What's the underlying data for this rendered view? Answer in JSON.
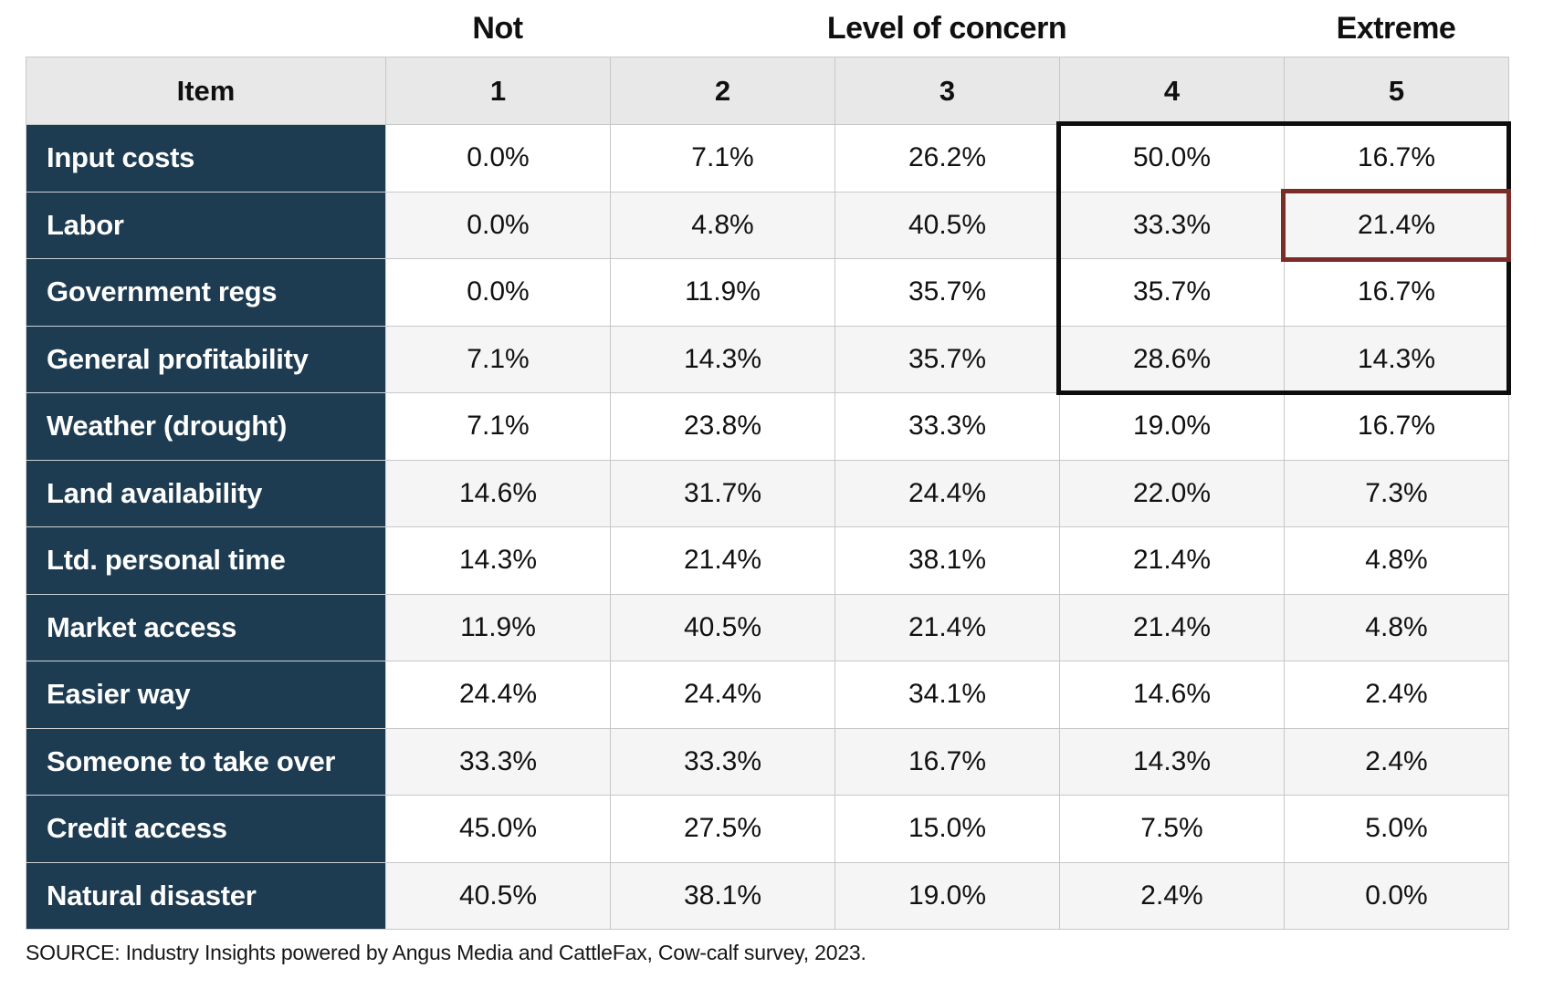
{
  "title_row": {
    "left": "Not",
    "center": "Level of concern",
    "right": "Extreme"
  },
  "table": {
    "columns": [
      "Item",
      "1",
      "2",
      "3",
      "4",
      "5"
    ],
    "rows": [
      {
        "item": "Input costs",
        "values": [
          "0.0%",
          "7.1%",
          "26.2%",
          "50.0%",
          "16.7%"
        ]
      },
      {
        "item": "Labor",
        "values": [
          "0.0%",
          "4.8%",
          "40.5%",
          "33.3%",
          "21.4%"
        ]
      },
      {
        "item": "Government regs",
        "values": [
          "0.0%",
          "11.9%",
          "35.7%",
          "35.7%",
          "16.7%"
        ]
      },
      {
        "item": "General profitability",
        "values": [
          "7.1%",
          "14.3%",
          "35.7%",
          "28.6%",
          "14.3%"
        ]
      },
      {
        "item": "Weather (drought)",
        "values": [
          "7.1%",
          "23.8%",
          "33.3%",
          "19.0%",
          "16.7%"
        ]
      },
      {
        "item": "Land availability",
        "values": [
          "14.6%",
          "31.7%",
          "24.4%",
          "22.0%",
          "7.3%"
        ]
      },
      {
        "item": "Ltd. personal time",
        "values": [
          "14.3%",
          "21.4%",
          "38.1%",
          "21.4%",
          "4.8%"
        ]
      },
      {
        "item": "Market access",
        "values": [
          "11.9%",
          "40.5%",
          "21.4%",
          "21.4%",
          "4.8%"
        ]
      },
      {
        "item": "Easier way",
        "values": [
          "24.4%",
          "24.4%",
          "34.1%",
          "14.6%",
          "2.4%"
        ]
      },
      {
        "item": "Someone to take over",
        "values": [
          "33.3%",
          "33.3%",
          "16.7%",
          "14.3%",
          "2.4%"
        ]
      },
      {
        "item": "Credit access",
        "values": [
          "45.0%",
          "27.5%",
          "15.0%",
          "7.5%",
          "5.0%"
        ]
      },
      {
        "item": "Natural disaster",
        "values": [
          "40.5%",
          "38.1%",
          "19.0%",
          "2.4%",
          "0.0%"
        ]
      }
    ]
  },
  "highlights": {
    "black_box": {
      "color": "#0d0d0d",
      "columns": [
        "4",
        "5"
      ],
      "rows": [
        "Input costs",
        "Labor",
        "Government regs",
        "General profitability"
      ]
    },
    "red_box": {
      "color": "#7a2c27",
      "column": "5",
      "row": "Labor",
      "value": "21.4%"
    }
  },
  "source": "SOURCE: Industry Insights powered by Angus Media and CattleFax, Cow-calf survey, 2023.",
  "colors": {
    "item_bg": "#1d3b51",
    "header_bg": "#e8e8e9",
    "alt_row_bg": "#f4f5f4",
    "black_box": "#0d0d0d",
    "red_box": "#7a2c27"
  },
  "chart_data": {
    "type": "table",
    "title": "Level of concern",
    "scale": {
      "1": "Not concerned",
      "5": "Extreme concern"
    },
    "categories": [
      "Input costs",
      "Labor",
      "Government regs",
      "General profitability",
      "Weather (drought)",
      "Land availability",
      "Ltd. personal time",
      "Market access",
      "Easier way",
      "Someone to take over",
      "Credit access",
      "Natural disaster"
    ],
    "series": [
      {
        "name": "1",
        "values": [
          0.0,
          0.0,
          0.0,
          7.1,
          7.1,
          14.6,
          14.3,
          11.9,
          24.4,
          33.3,
          45.0,
          40.5
        ]
      },
      {
        "name": "2",
        "values": [
          7.1,
          4.8,
          11.9,
          14.3,
          23.8,
          31.7,
          21.4,
          40.5,
          24.4,
          33.3,
          27.5,
          38.1
        ]
      },
      {
        "name": "3",
        "values": [
          26.2,
          40.5,
          35.7,
          35.7,
          33.3,
          24.4,
          38.1,
          21.4,
          34.1,
          16.7,
          15.0,
          19.0
        ]
      },
      {
        "name": "4",
        "values": [
          50.0,
          33.3,
          35.7,
          28.6,
          19.0,
          22.0,
          21.4,
          21.4,
          14.6,
          14.3,
          7.5,
          2.4
        ]
      },
      {
        "name": "5",
        "values": [
          16.7,
          21.4,
          16.7,
          14.3,
          16.7,
          7.3,
          4.8,
          4.8,
          2.4,
          2.4,
          5.0,
          0.0
        ]
      }
    ],
    "units": "percent",
    "annotations": [
      {
        "label": "black outline box",
        "covers": "columns 4-5 of rows Input costs through General profitability"
      },
      {
        "label": "dark red outline box",
        "covers": "column 5 of row Labor (21.4%)"
      }
    ]
  }
}
